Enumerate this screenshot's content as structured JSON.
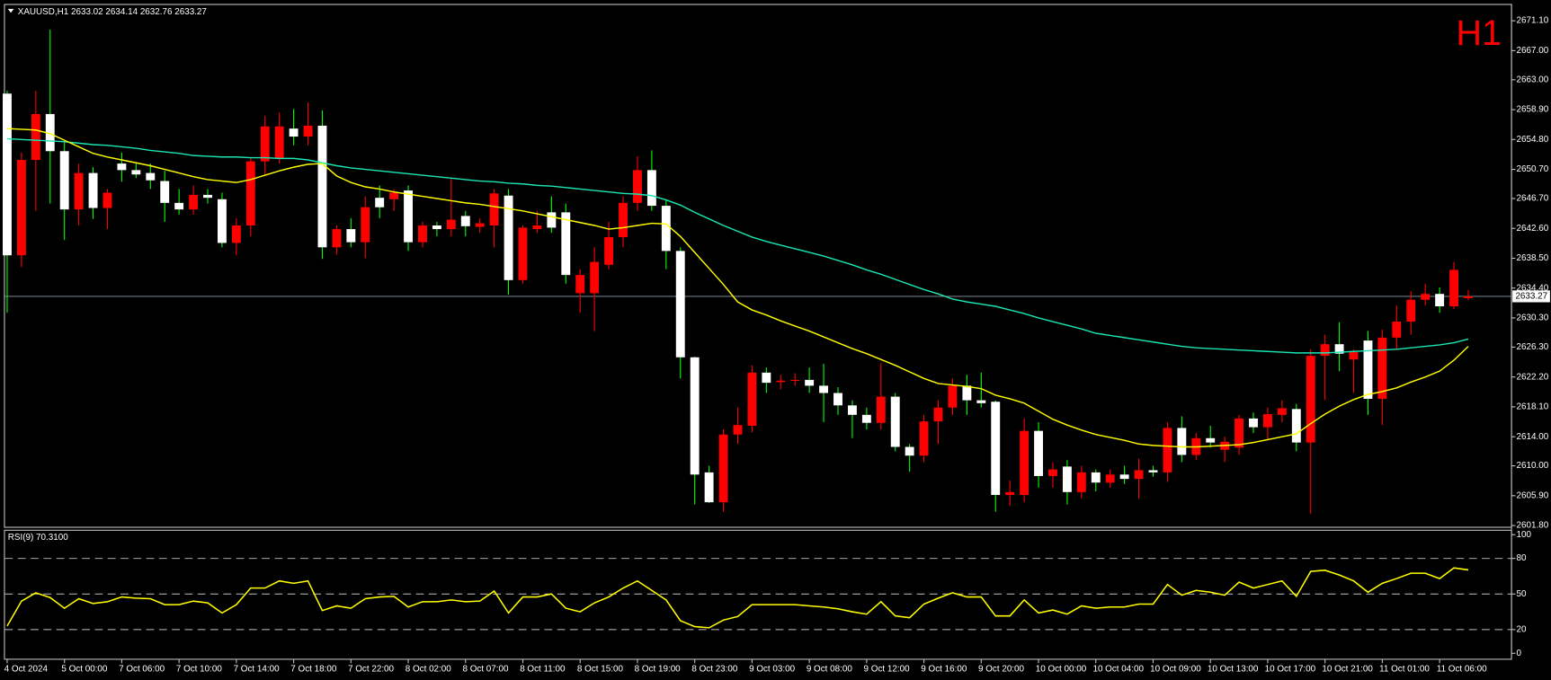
{
  "chart_data": [
    {
      "type": "candlestick",
      "header": "XAUUSD,H1  2633.02 2634.14 2632.76 2633.27",
      "annotation": "H1",
      "annotation_color": "#ff0000",
      "categories": [
        "4 Oct 2024",
        null,
        null,
        null,
        "5 Oct 00:00",
        null,
        null,
        null,
        "7 Oct 06:00",
        null,
        null,
        null,
        "7 Oct 10:00",
        null,
        null,
        null,
        "7 Oct 14:00",
        null,
        null,
        null,
        "7 Oct 18:00",
        null,
        null,
        null,
        "7 Oct 22:00",
        null,
        null,
        null,
        "8 Oct 02:00",
        null,
        null,
        null,
        "8 Oct 07:00",
        null,
        null,
        null,
        "8 Oct 11:00",
        null,
        null,
        null,
        "8 Oct 15:00",
        null,
        null,
        null,
        "8 Oct 19:00",
        null,
        null,
        null,
        "8 Oct 23:00",
        null,
        null,
        null,
        "9 Oct 03:00",
        null,
        null,
        null,
        "9 Oct 08:00",
        null,
        null,
        null,
        "9 Oct 12:00",
        null,
        null,
        null,
        "9 Oct 16:00",
        null,
        null,
        null,
        "9 Oct 20:00",
        null,
        null,
        null,
        "10 Oct 00:00",
        null,
        null,
        null,
        "10 Oct 04:00",
        null,
        null,
        null,
        "10 Oct 09:00",
        null,
        null,
        null,
        "10 Oct 13:00",
        null,
        null,
        null,
        "10 Oct 17:00",
        null,
        null,
        null,
        "10 Oct 21:00",
        null,
        null,
        null,
        "11 Oct 01:00",
        null,
        null,
        null,
        "11 Oct 06:00",
        null,
        null
      ],
      "open": [
        2661.1,
        2638.9,
        2652.0,
        2658.3,
        2653.2,
        2645.2,
        2650.2,
        2645.4,
        2651.5,
        2650.6,
        2650.2,
        2649.1,
        2646.1,
        2645.2,
        2647.2,
        2646.6,
        2640.6,
        2643.0,
        2651.8,
        2652.2,
        2656.3,
        2655.2,
        2656.7,
        2640.0,
        2642.5,
        2640.7,
        2646.8,
        2646.6,
        2647.8,
        2640.7,
        2643.0,
        2642.5,
        2644.3,
        2642.8,
        2643.0,
        2647.1,
        2635.5,
        2642.5,
        2644.8,
        2644.8,
        2633.7,
        2633.7,
        2637.6,
        2641.4,
        2646.1,
        2650.6,
        2645.7,
        2639.5,
        2624.9,
        2609.1,
        2605.0,
        2614.3,
        2615.5,
        2622.8,
        2621.5,
        2621.7,
        2621.8,
        2621.0,
        2620.0,
        2618.3,
        2617.0,
        2615.9,
        2619.5,
        2612.6,
        2611.4,
        2616.1,
        2618.0,
        2621.0,
        2619.0,
        2618.8,
        2606.0,
        2606.0,
        2614.8,
        2608.6,
        2609.9,
        2606.4,
        2609.1,
        2607.7,
        2608.8,
        2608.2,
        2609.4,
        2609.1,
        2615.2,
        2611.5,
        2613.8,
        2612.2,
        2612.5,
        2616.5,
        2615.3,
        2617.0,
        2617.8,
        2613.2,
        2625.1,
        2626.7,
        2624.6,
        2627.2,
        2619.2,
        2627.6,
        2629.8,
        2632.8,
        2633.6,
        2631.9,
        2633.02
      ],
      "high": [
        2661.5,
        2653.0,
        2661.5,
        2669.9,
        2654.5,
        2651.5,
        2651.0,
        2648.0,
        2653.0,
        2651.5,
        2651.5,
        2650.5,
        2648.0,
        2648.5,
        2648.0,
        2647.5,
        2644.0,
        2652.3,
        2658.0,
        2658.5,
        2659.0,
        2659.9,
        2658.8,
        2643.0,
        2644.0,
        2647.0,
        2648.5,
        2648.0,
        2648.5,
        2643.5,
        2643.5,
        2649.5,
        2645.0,
        2644.0,
        2648.0,
        2648.0,
        2643.0,
        2645.0,
        2647.0,
        2646.0,
        2637.0,
        2640.0,
        2643.5,
        2647.0,
        2652.5,
        2653.3,
        2646.5,
        2640.0,
        2625.0,
        2610.0,
        2615.0,
        2618.0,
        2623.8,
        2623.5,
        2622.5,
        2622.7,
        2623.5,
        2624.0,
        2620.8,
        2619.0,
        2618.0,
        2624.1,
        2620.0,
        2613.0,
        2617.0,
        2619.0,
        2622.0,
        2622.5,
        2622.8,
        2619.0,
        2608.0,
        2616.5,
        2616.0,
        2610.5,
        2610.8,
        2610.0,
        2609.5,
        2609.5,
        2610.0,
        2611.0,
        2610.0,
        2616.0,
        2616.8,
        2614.5,
        2615.5,
        2614.0,
        2617.0,
        2617.3,
        2618.0,
        2619.0,
        2618.5,
        2626.0,
        2628.0,
        2629.7,
        2626.0,
        2628.5,
        2628.7,
        2632.0,
        2634.0,
        2635.0,
        2634.5,
        2638.0,
        2634.14
      ],
      "low": [
        2631.0,
        2637.3,
        2645.0,
        2646.0,
        2641.0,
        2643.0,
        2643.9,
        2642.5,
        2649.0,
        2649.5,
        2648.0,
        2643.5,
        2644.5,
        2644.5,
        2646.0,
        2640.0,
        2638.9,
        2641.5,
        2650.0,
        2651.5,
        2654.0,
        2654.0,
        2638.4,
        2639.0,
        2640.0,
        2638.5,
        2644.0,
        2645.0,
        2639.5,
        2640.0,
        2641.5,
        2641.5,
        2641.5,
        2642.0,
        2640.0,
        2633.5,
        2635.0,
        2642.0,
        2642.0,
        2635.0,
        2631.0,
        2628.5,
        2637.0,
        2640.0,
        2645.0,
        2645.0,
        2637.0,
        2622.0,
        2604.7,
        2604.9,
        2603.7,
        2613.0,
        2614.6,
        2620.0,
        2620.5,
        2621.0,
        2620.0,
        2616.0,
        2617.0,
        2613.8,
        2615.0,
        2615.0,
        2612.0,
        2609.2,
        2610.5,
        2613.0,
        2617.0,
        2617.0,
        2618.0,
        2603.7,
        2604.5,
        2605.0,
        2607.0,
        2607.0,
        2604.7,
        2605.5,
        2606.5,
        2607.0,
        2607.5,
        2605.5,
        2608.5,
        2607.8,
        2610.5,
        2610.8,
        2612.5,
        2610.5,
        2611.5,
        2614.5,
        2613.5,
        2616.0,
        2612.0,
        2603.4,
        2619.0,
        2623.0,
        2620.0,
        2617.0,
        2615.6,
        2626.0,
        2628.0,
        2632.0,
        2631.0,
        2631.5,
        2632.76
      ],
      "close": [
        2638.9,
        2652.0,
        2658.3,
        2653.2,
        2645.2,
        2650.2,
        2645.4,
        2647.5,
        2650.6,
        2650.0,
        2649.2,
        2646.1,
        2645.2,
        2647.2,
        2646.8,
        2640.6,
        2643.0,
        2651.8,
        2656.6,
        2656.6,
        2655.2,
        2656.7,
        2640.0,
        2642.5,
        2640.7,
        2645.5,
        2645.5,
        2647.5,
        2640.7,
        2643.0,
        2642.5,
        2643.8,
        2642.9,
        2643.3,
        2647.4,
        2635.5,
        2642.7,
        2643.0,
        2642.7,
        2636.2,
        2636.2,
        2638.0,
        2641.4,
        2646.1,
        2650.6,
        2645.7,
        2639.5,
        2624.9,
        2608.8,
        2605.0,
        2614.3,
        2615.6,
        2622.8,
        2621.4,
        2621.7,
        2621.8,
        2621.0,
        2620.0,
        2618.3,
        2617.0,
        2615.9,
        2619.5,
        2612.6,
        2611.4,
        2616.1,
        2618.0,
        2621.0,
        2619.0,
        2618.6,
        2606.0,
        2606.4,
        2614.8,
        2608.6,
        2609.5,
        2606.4,
        2609.1,
        2607.7,
        2608.8,
        2608.2,
        2609.4,
        2609.1,
        2615.2,
        2611.5,
        2613.8,
        2613.2,
        2613.3,
        2616.5,
        2615.3,
        2617.1,
        2617.9,
        2613.2,
        2625.1,
        2626.7,
        2625.4,
        2625.6,
        2619.2,
        2627.6,
        2629.8,
        2632.8,
        2633.6,
        2631.9,
        2636.9,
        2633.27
      ],
      "up_color": "#ff0000",
      "down_color": "#ffffff",
      "down_wick_color": "#00ff00",
      "lines": [
        {
          "color": "#19e6b4",
          "values": [
            2654.9,
            2654.8,
            2654.7,
            2654.6,
            2654.5,
            2654.3,
            2654.1,
            2654.0,
            2653.8,
            2653.6,
            2653.3,
            2653.1,
            2652.9,
            2652.6,
            2652.5,
            2652.4,
            2652.4,
            2652.3,
            2652.3,
            2652.2,
            2652.2,
            2652.0,
            2651.6,
            2651.2,
            2650.9,
            2650.7,
            2650.5,
            2650.3,
            2650.1,
            2649.9,
            2649.7,
            2649.5,
            2649.3,
            2649.1,
            2649.0,
            2648.8,
            2648.7,
            2648.5,
            2648.4,
            2648.2,
            2648.0,
            2647.8,
            2647.6,
            2647.4,
            2647.3,
            2647.1,
            2646.5,
            2645.8,
            2644.8,
            2643.9,
            2643.0,
            2642.2,
            2641.4,
            2640.8,
            2640.3,
            2639.8,
            2639.3,
            2638.8,
            2638.2,
            2637.6,
            2636.9,
            2636.3,
            2635.6,
            2634.9,
            2634.2,
            2633.6,
            2632.9,
            2632.5,
            2632.2,
            2631.9,
            2631.4,
            2630.9,
            2630.3,
            2629.8,
            2629.3,
            2628.8,
            2628.2,
            2627.9,
            2627.6,
            2627.3,
            2627.0,
            2626.7,
            2626.4,
            2626.2,
            2626.1,
            2626.0,
            2625.9,
            2625.8,
            2625.7,
            2625.6,
            2625.5,
            2625.5,
            2625.5,
            2625.6,
            2625.7,
            2625.8,
            2625.9,
            2626.0,
            2626.2,
            2626.4,
            2626.6,
            2626.9,
            2627.4
          ]
        },
        {
          "color": "#ffff00",
          "values": [
            2656.3,
            2656.2,
            2656.1,
            2655.6,
            2654.7,
            2653.8,
            2652.9,
            2652.4,
            2652.0,
            2651.6,
            2651.2,
            2650.7,
            2650.2,
            2649.7,
            2649.3,
            2649.1,
            2648.9,
            2649.3,
            2649.9,
            2650.5,
            2651.0,
            2651.4,
            2651.5,
            2649.8,
            2648.9,
            2648.3,
            2648.0,
            2647.6,
            2647.3,
            2647.0,
            2646.7,
            2646.4,
            2646.1,
            2645.9,
            2645.6,
            2645.3,
            2645.0,
            2644.6,
            2644.2,
            2643.8,
            2643.4,
            2643.0,
            2642.5,
            2642.7,
            2643.0,
            2643.3,
            2643.2,
            2641.5,
            2639.3,
            2637.1,
            2634.9,
            2632.5,
            2631.4,
            2630.7,
            2629.9,
            2629.2,
            2628.5,
            2627.7,
            2626.9,
            2626.1,
            2625.4,
            2624.6,
            2623.8,
            2622.9,
            2622.0,
            2621.3,
            2621.1,
            2620.9,
            2620.6,
            2619.7,
            2619.2,
            2618.6,
            2617.5,
            2616.4,
            2615.6,
            2614.9,
            2614.3,
            2613.9,
            2613.5,
            2613.0,
            2612.8,
            2612.7,
            2612.6,
            2612.6,
            2612.7,
            2612.8,
            2612.9,
            2613.2,
            2613.6,
            2614.0,
            2614.4,
            2615.8,
            2617.1,
            2618.2,
            2619.1,
            2619.8,
            2620.2,
            2620.7,
            2621.5,
            2622.2,
            2623.0,
            2624.5,
            2626.4
          ]
        }
      ],
      "current_price": {
        "value": 2633.27,
        "label": "2633.27"
      },
      "ylim": [
        2601.63,
        2673.41
      ],
      "yticks": [
        {
          "value": 2671.1,
          "label": "2671.10"
        },
        {
          "value": 2667,
          "label": "2667.00"
        },
        {
          "value": 2663,
          "label": "2663.00"
        },
        {
          "value": 2658.9,
          "label": "2658.90"
        },
        {
          "value": 2654.8,
          "label": "2654.80"
        },
        {
          "value": 2650.7,
          "label": "2650.70"
        },
        {
          "value": 2646.7,
          "label": "2646.70"
        },
        {
          "value": 2642.6,
          "label": "2642.60"
        },
        {
          "value": 2638.5,
          "label": "2638.50"
        },
        {
          "value": 2634.4,
          "label": "2634.40"
        },
        {
          "value": 2630.3,
          "label": "2630.30"
        },
        {
          "value": 2626.3,
          "label": "2626.30"
        },
        {
          "value": 2622.2,
          "label": "2622.20"
        },
        {
          "value": 2618.1,
          "label": "2618.10"
        },
        {
          "value": 2614,
          "label": "2614.00"
        },
        {
          "value": 2610,
          "label": "2610.00"
        },
        {
          "value": 2605.9,
          "label": "2605.90"
        },
        {
          "value": 2601.8,
          "label": "2601.80"
        }
      ]
    },
    {
      "type": "line",
      "title": "RSI(9) 70.3100",
      "color": "#ffff00",
      "values": [
        23,
        44,
        51,
        47,
        38,
        46,
        42,
        43.5,
        47.5,
        46.5,
        46,
        41,
        41,
        44,
        42.5,
        34,
        41,
        55,
        55,
        61,
        59,
        61,
        36,
        40,
        38,
        46,
        47.5,
        48,
        39,
        43.5,
        43.5,
        45,
        43.5,
        44,
        52.5,
        34,
        47.5,
        47.5,
        50,
        38,
        35,
        42.5,
        47.5,
        55,
        61,
        53,
        45,
        27.5,
        22.5,
        21.5,
        28,
        31,
        41,
        41,
        41,
        41,
        40,
        39,
        37.5,
        35,
        33,
        43.5,
        31.5,
        30,
        41.5,
        46.5,
        51,
        47.5,
        47.5,
        31.5,
        31.5,
        45,
        34,
        36.5,
        33,
        40,
        38,
        39,
        39,
        41.5,
        41.5,
        58,
        49,
        53,
        51.5,
        49,
        60,
        55,
        58,
        61,
        48,
        69,
        70,
        66,
        61,
        51.5,
        59,
        63,
        67.5,
        67.5,
        63,
        72,
        70.31
      ],
      "levels": [
        80,
        50,
        20
      ],
      "ylim": [
        -5,
        103.3
      ],
      "yticks": [
        100,
        80,
        50,
        20,
        0
      ]
    }
  ]
}
